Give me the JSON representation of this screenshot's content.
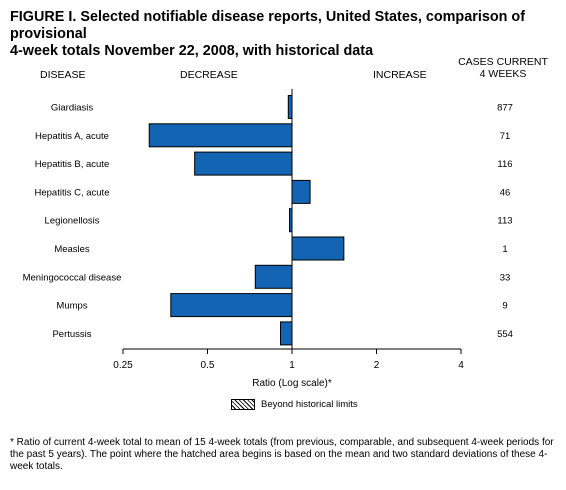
{
  "figure": {
    "title_line1": "FIGURE I. Selected notifiable disease reports, United States, comparison of provisional",
    "title_line2": "4-week totals November 22, 2008, with historical data"
  },
  "headers": {
    "disease": "DISEASE",
    "decrease": "DECREASE",
    "increase": "INCREASE",
    "cases_line1": "CASES CURRENT",
    "cases_line2": "4 WEEKS"
  },
  "legend": {
    "label": "Beyond historical limits"
  },
  "footnote": "* Ratio of current 4-week total to mean of 15 4-week totals (from previous, comparable, and subsequent 4-week periods for the past 5 years). The point where the hatched area begins is based on the mean and two standard deviations of these 4-week totals.",
  "colors": {
    "bar": "#1464b4",
    "bar_border": "#000000",
    "reference_line": "#000000"
  },
  "chart_data": {
    "type": "bar",
    "orientation": "horizontal",
    "xscale": "log",
    "xlabel": "Ratio (Log scale)*",
    "xlim": [
      0.25,
      4
    ],
    "xticks": [
      0.25,
      0.5,
      1,
      2,
      4
    ],
    "xtick_labels": [
      "0.25",
      "0.5",
      "1",
      "2",
      "4"
    ],
    "reference_value": 1,
    "categories": [
      "Giardiasis",
      "Hepatitis A, acute",
      "Hepatitis B, acute",
      "Hepatitis C, acute",
      "Legionellosis",
      "Measles",
      "Meningococcal disease",
      "Mumps",
      "Pertussis"
    ],
    "values": [
      0.97,
      0.31,
      0.45,
      1.16,
      0.98,
      1.53,
      0.74,
      0.37,
      0.91
    ],
    "cases_current_4_weeks": [
      "877",
      "71",
      "116",
      "46",
      "113",
      "1",
      "33",
      "9",
      "554"
    ]
  }
}
